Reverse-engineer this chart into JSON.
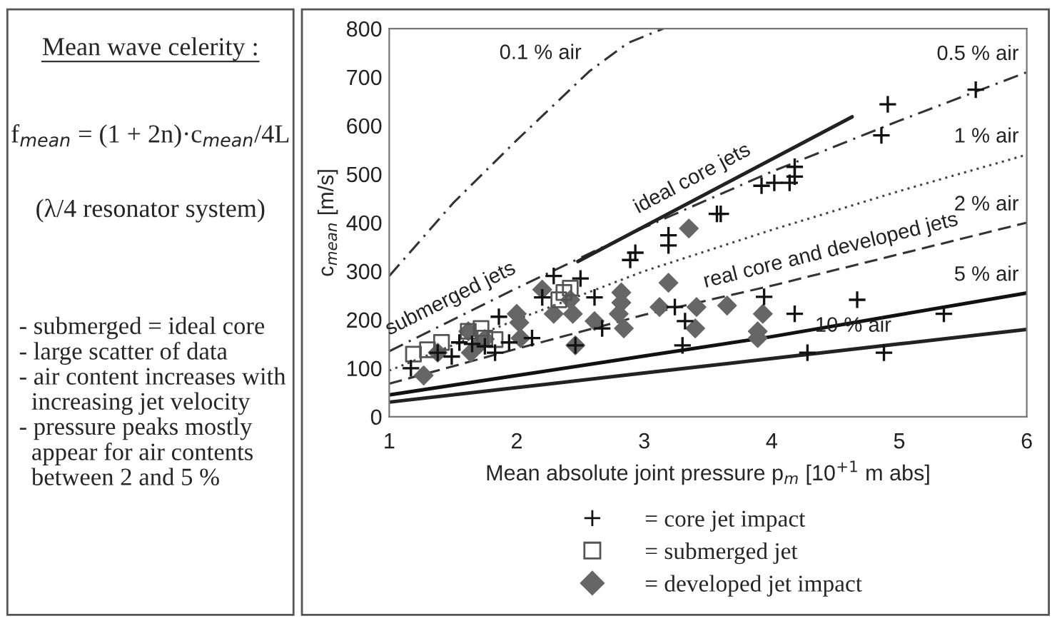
{
  "chart_data": {
    "type": "scatter",
    "xlabel": "Mean absolute joint pressure p$_{m}$ [10$^{+1}$ m abs]",
    "ylabel": "c$_{mean}$ [m/s]",
    "xlim": [
      1,
      6
    ],
    "xticks": [
      1,
      2,
      3,
      4,
      5,
      6
    ],
    "ylim": [
      0,
      800
    ],
    "yticks": [
      0,
      100,
      200,
      300,
      400,
      500,
      600,
      700,
      800
    ],
    "grid": false,
    "legend": "bottom",
    "series": [
      {
        "type": "line",
        "color": "#333333",
        "line_style": "dashdot",
        "x": [
          1,
          1.5,
          2,
          2.57,
          2.87,
          3.15
        ],
        "values": [
          290,
          440,
          570,
          712,
          770,
          800
        ]
      },
      {
        "type": "line",
        "color": "#333333",
        "line_style": "dashdot",
        "x": [
          1,
          2,
          3,
          4,
          5,
          6
        ],
        "values": [
          135,
          265,
          390,
          505,
          610,
          710
        ]
      },
      {
        "type": "line",
        "color": "#444444",
        "line_style": "dotted",
        "x": [
          1,
          2,
          3,
          4,
          5,
          6
        ],
        "values": [
          95,
          200,
          300,
          385,
          465,
          540
        ]
      },
      {
        "type": "line",
        "color": "#333333",
        "line_style": "dashed",
        "x": [
          1,
          2,
          3,
          4,
          5,
          6
        ],
        "values": [
          68,
          140,
          210,
          270,
          335,
          400
        ]
      },
      {
        "type": "line",
        "color": "#111111",
        "line_style": "solid",
        "x": [
          1,
          2,
          3,
          4,
          5,
          6
        ],
        "values": [
          45,
          85,
          125,
          165,
          210,
          255
        ]
      },
      {
        "type": "line",
        "color": "#222222",
        "line_style": "solid",
        "x": [
          1,
          2,
          3,
          4,
          5,
          6
        ],
        "values": [
          30,
          60,
          90,
          120,
          150,
          180
        ]
      },
      {
        "type": "line",
        "color": "#222222",
        "line_style": "solid",
        "x": [
          2.48,
          4.63
        ],
        "values": [
          320,
          618
        ]
      },
      {
        "name": "= core jet impact",
        "color": "#111111",
        "marker": "cross",
        "x": [
          1.17,
          1.38,
          1.49,
          1.55,
          1.65,
          1.75,
          1.83,
          1.86,
          1.94,
          2.12,
          2.2,
          2.29,
          2.5,
          2.61,
          2.67,
          2.46,
          2.89,
          2.93,
          3.19,
          3.19,
          3.24,
          3.3,
          3.32,
          3.57,
          3.6,
          3.92,
          4.02,
          4.14,
          4.18,
          4.18,
          3.94,
          4.18,
          4.28,
          4.67,
          4.86,
          4.91,
          4.88,
          5.35,
          5.6
        ],
        "values": [
          100,
          132,
          124,
          153,
          150,
          145,
          132,
          206,
          153,
          162,
          246,
          290,
          285,
          246,
          182,
          147,
          323,
          338,
          374,
          353,
          226,
          147,
          197,
          418,
          418,
          476,
          482,
          482,
          515,
          495,
          247,
          212,
          132,
          241,
          580,
          644,
          132,
          212,
          674
        ]
      },
      {
        "name": "= submerged jet",
        "color": "#555555",
        "marker": "square",
        "x": [
          1.19,
          1.3,
          1.41,
          1.62,
          1.72,
          1.75,
          1.83,
          2.33,
          2.37,
          2.42
        ],
        "values": [
          129,
          138,
          153,
          176,
          182,
          162,
          159,
          241,
          256,
          265
        ]
      },
      {
        "name": "= developed jet impact",
        "color": "#666666",
        "marker": "diamond",
        "x": [
          1.27,
          1.38,
          1.62,
          1.64,
          1.71,
          1.75,
          2.0,
          2.02,
          2.03,
          2.2,
          2.29,
          2.42,
          2.44,
          2.46,
          2.61,
          2.82,
          2.82,
          2.8,
          2.84,
          3.19,
          3.12,
          3.35,
          3.41,
          3.4,
          3.65,
          3.93,
          3.89,
          3.89
        ],
        "values": [
          85,
          132,
          176,
          132,
          150,
          160,
          212,
          194,
          162,
          262,
          212,
          241,
          212,
          147,
          197,
          256,
          235,
          212,
          182,
          276,
          226,
          388,
          226,
          182,
          229,
          212,
          176,
          162
        ]
      }
    ],
    "annotations": [
      {
        "text": "0.1 % air",
        "x": 2.57,
        "y": 712
      },
      {
        "text": "0.5 % air",
        "x": 6,
        "y": 710
      },
      {
        "text": "1 % air",
        "x": 6,
        "y": 540
      },
      {
        "text": "2 % air",
        "x": 6,
        "y": 400
      },
      {
        "text": "5 % air",
        "x": 6,
        "y": 255
      },
      {
        "text": "10 % air",
        "x": 5,
        "y": 150
      },
      {
        "text": "ideal core jets",
        "x": 3.45,
        "y": 454
      },
      {
        "text": "submerged jets",
        "x": 1.55,
        "y": 206
      },
      {
        "text": "real core and developed jets",
        "x": 4.5,
        "y": 302
      },
      "Mean wave celerity :",
      "f$_{mean}$ = (1 + 2n)·c$_{mean}$/4L",
      "(λ/4 resonator system)",
      "- submerged = ideal core\n- large scatter of data\n- air content increases with\n  increasing jet velocity\n- pressure peaks mostly\n  appear for air contents\n  between 2 and 5 %"
    ]
  }
}
